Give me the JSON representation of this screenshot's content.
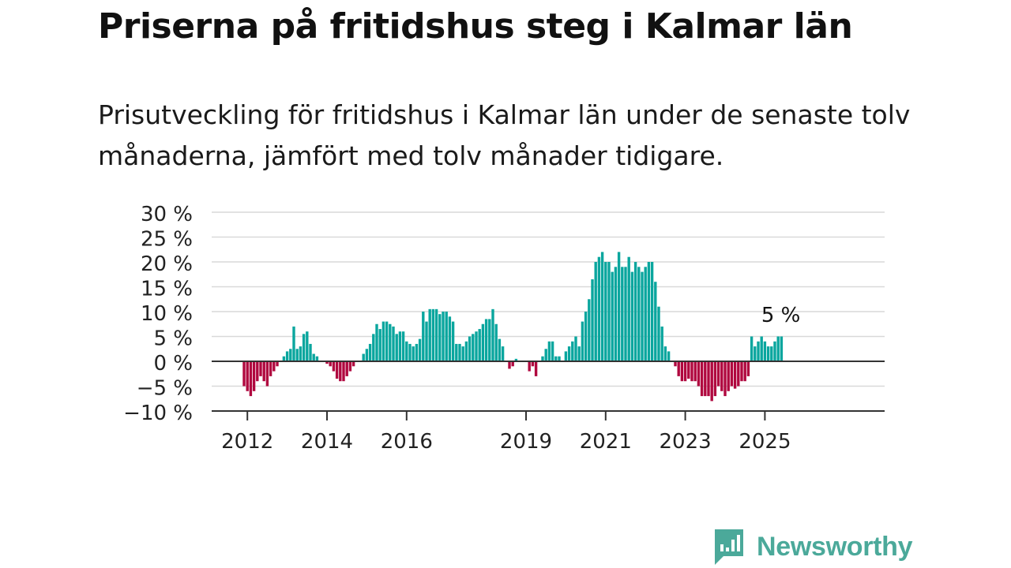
{
  "header": {
    "title": "Priserna på fritidshus steg i Kalmar län",
    "subtitle": "Prisutveckling för fritidshus i Kalmar län under de senaste tolv månaderna, jämfört med tolv månader tidigare."
  },
  "brand": {
    "name": "Newsworthy",
    "color": "#4ba99a"
  },
  "colors": {
    "positive": "#0aa69e",
    "negative": "#b0083f",
    "grid": "#d9d9d9",
    "axis": "#333333"
  },
  "chart_data": {
    "type": "bar",
    "x_unit": "month",
    "start": "2011-12",
    "end": "2025-07",
    "y_unit": "%",
    "ylim": [
      -10,
      30
    ],
    "yticks": [
      "30 %",
      "25 %",
      "20 %",
      "15 %",
      "10 %",
      "5 %",
      "0 %",
      "−5 %",
      "−10 %"
    ],
    "ytick_values": [
      30,
      25,
      20,
      15,
      10,
      5,
      0,
      -5,
      -10
    ],
    "xticks": [
      "2012",
      "2014",
      "2016",
      "2019",
      "2021",
      "2023",
      "2025"
    ],
    "grid": true,
    "legend": "none",
    "annotation": "5 %",
    "values": [
      -5,
      -6,
      -7,
      -6,
      -4,
      -3,
      -4,
      -5,
      -3,
      -2,
      -1,
      0,
      1,
      2,
      2.5,
      7,
      2.5,
      3,
      5.5,
      6,
      3.5,
      1.5,
      1,
      0,
      0,
      -0.5,
      -1,
      -2,
      -3.5,
      -4,
      -4,
      -3,
      -2,
      -1,
      0,
      0,
      1.5,
      2.5,
      3.5,
      5.5,
      7.5,
      6.5,
      8,
      8,
      7.5,
      7,
      5.5,
      6,
      6,
      4,
      3.5,
      3,
      3.5,
      4.5,
      10,
      8,
      10.5,
      10.5,
      10.5,
      9.5,
      10,
      10,
      9,
      8,
      3.5,
      3.5,
      3,
      4,
      5,
      5.5,
      6,
      6.5,
      7.5,
      8.5,
      8.5,
      10.5,
      7.5,
      4.5,
      3,
      0,
      -1.5,
      -1,
      0.5,
      0,
      0,
      0,
      -2,
      -1,
      -3,
      0,
      1,
      2.5,
      4,
      4,
      1,
      1,
      0,
      2,
      3,
      4,
      5,
      3,
      8,
      10,
      12.5,
      16.5,
      20,
      21,
      22,
      20,
      20,
      18,
      19,
      22,
      19,
      19,
      21,
      18,
      20,
      19,
      18,
      19,
      20,
      20,
      16,
      11,
      7,
      3,
      2,
      0,
      -1,
      -3,
      -4,
      -4,
      -3.5,
      -4,
      -4,
      -5,
      -7,
      -7,
      -7,
      -8,
      -7,
      -5,
      -6,
      -7,
      -6,
      -5,
      -5.5,
      -5,
      -4,
      -4,
      -3,
      5,
      3,
      4,
      5,
      4,
      3,
      3,
      4,
      5,
      5
    ]
  }
}
